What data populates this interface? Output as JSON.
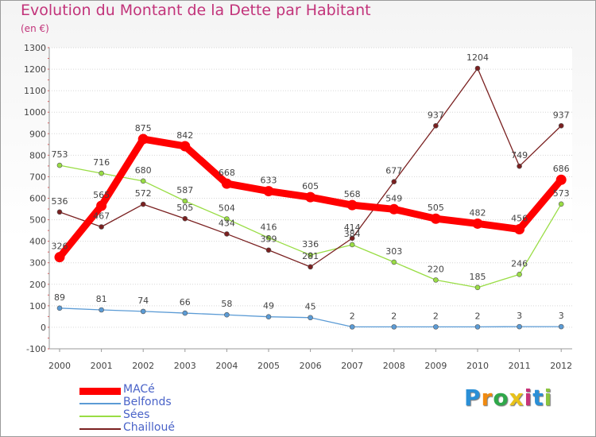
{
  "header": {
    "title": "Evolution du Montant de la Dette par Habitant",
    "subtitle": "(en €)"
  },
  "logo": {
    "letters": [
      "P",
      "r",
      "o",
      "x",
      "i",
      "t",
      "i"
    ],
    "colors": [
      "#2a8fd6",
      "#f08a10",
      "#2fa84a",
      "#e8c21a",
      "#c8327a",
      "#2a8fd6",
      "#8bc53f"
    ]
  },
  "chart_data": {
    "type": "line",
    "title": "Evolution du Montant de la Dette par Habitant",
    "subtitle": "(en €)",
    "xlabel": "",
    "ylabel": "",
    "ylim": [
      -100,
      1300
    ],
    "yticks": [
      -100,
      0,
      100,
      200,
      300,
      400,
      500,
      600,
      700,
      800,
      900,
      1000,
      1100,
      1200,
      1300
    ],
    "categories": [
      "2000",
      "2001",
      "2002",
      "2003",
      "2004",
      "2005",
      "2006",
      "2007",
      "2008",
      "2009",
      "2010",
      "2011",
      "2012"
    ],
    "grid": "horizontal dotted",
    "legend_position": "bottom-left",
    "series": [
      {
        "name": "MACé",
        "color": "#ff0000",
        "values": [
          326,
          565,
          875,
          842,
          668,
          633,
          605,
          568,
          549,
          505,
          482,
          456,
          686
        ]
      },
      {
        "name": "Belfonds",
        "color": "#5b9bd5",
        "values": [
          89,
          81,
          74,
          66,
          58,
          49,
          45,
          2,
          2,
          2,
          2,
          3,
          3
        ]
      },
      {
        "name": "Sées",
        "color": "#99dd44",
        "values": [
          753,
          716,
          680,
          587,
          504,
          416,
          336,
          384,
          303,
          220,
          185,
          246,
          573
        ]
      },
      {
        "name": "Chailloué",
        "color": "#7a2020",
        "values": [
          536,
          467,
          572,
          505,
          434,
          359,
          281,
          414,
          677,
          937,
          1204,
          749,
          937
        ]
      }
    ]
  }
}
